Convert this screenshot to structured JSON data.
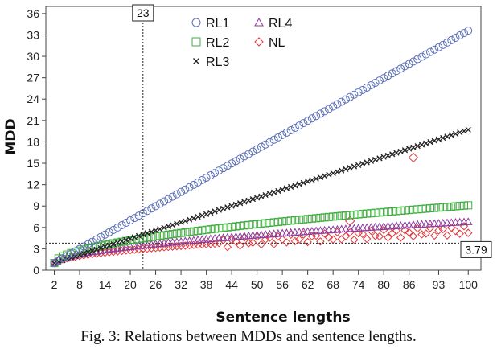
{
  "chart_data": {
    "type": "scatter",
    "xlabel": "Sentence lengths",
    "ylabel": "MDD",
    "xlim": [
      0,
      103
    ],
    "ylim": [
      0,
      37
    ],
    "x_ticks": [
      2,
      8,
      14,
      20,
      26,
      32,
      38,
      44,
      50,
      56,
      62,
      68,
      74,
      80,
      86,
      93,
      100
    ],
    "x_tick_labels": [
      "2",
      "8",
      "14",
      "20",
      "26",
      "32",
      "38",
      "44",
      "50",
      "56",
      "62",
      "68",
      "74",
      "80",
      "86",
      "93",
      "100"
    ],
    "y_ticks": [
      0,
      3,
      6,
      9,
      12,
      15,
      18,
      21,
      24,
      27,
      30,
      33,
      36
    ],
    "y_tick_labels": [
      "0",
      "3",
      "6",
      "9",
      "12",
      "15",
      "18",
      "21",
      "24",
      "27",
      "30",
      "33",
      "36"
    ],
    "grid": false,
    "legend_position": "top-center",
    "reference_lines": [
      {
        "axis": "x",
        "value": 23,
        "label": "23"
      },
      {
        "axis": "y",
        "value": 3.79,
        "label": "3.79"
      }
    ],
    "series": [
      {
        "name": "RL1",
        "marker": "circle",
        "color": "#5a6fb8",
        "x_start": 2,
        "x_end": 100,
        "y_start": 1.0,
        "y_end": 33.6
      },
      {
        "name": "RL2",
        "marker": "square",
        "color": "#3fae3f",
        "x_start": 2,
        "x_end": 100,
        "y_start": 1.0,
        "y_end": 9.1
      },
      {
        "name": "RL3",
        "marker": "x",
        "color": "#222222",
        "x_start": 2,
        "x_end": 100,
        "y_start": 1.0,
        "y_end": 19.7
      },
      {
        "name": "RL4",
        "marker": "triangle",
        "color": "#8b3a9a",
        "x_start": 2,
        "x_end": 100,
        "y_start": 1.0,
        "y_end": 6.8
      },
      {
        "name": "NL",
        "marker": "diamond",
        "color": "#e0383c",
        "x_start": 2,
        "x_end": 100,
        "y_start": 1.0,
        "y_end": 5.6,
        "outliers": [
          {
            "x": 72,
            "y": 6.9
          },
          {
            "x": 87,
            "y": 15.8
          }
        ]
      }
    ]
  },
  "caption": "Fig. 3: Relations between MDDs and sentence lengths."
}
